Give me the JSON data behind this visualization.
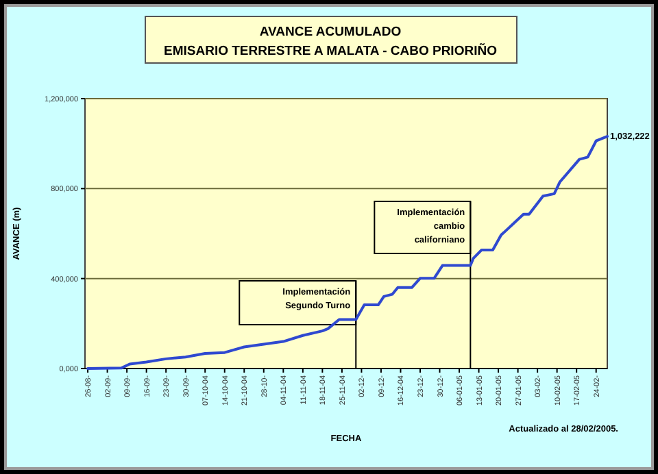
{
  "chart_data": {
    "type": "line",
    "title": "AVANCE ACUMULADO",
    "subtitle": "EMISARIO TERRESTRE A MALATA - CABO PRIORIÑO",
    "xlabel": "FECHA",
    "ylabel": "AVANCE (m)",
    "annotations": [
      "Actualizado al 28/02/2005."
    ],
    "x": [
      "2004-08-26",
      "2004-09-07",
      "2004-09-10",
      "2004-09-16",
      "2004-09-23",
      "2004-09-30",
      "2004-10-07",
      "2004-10-14",
      "2004-10-21",
      "2004-10-28",
      "2004-11-04",
      "2004-11-11",
      "2004-11-18",
      "2004-11-20",
      "2004-11-24",
      "2004-11-30",
      "2004-12-03",
      "2004-12-08",
      "2004-12-10",
      "2004-12-13",
      "2004-12-15",
      "2004-12-20",
      "2004-12-23",
      "2004-12-28",
      "2004-12-31",
      "2005-01-10",
      "2005-01-11",
      "2005-01-14",
      "2005-01-18",
      "2005-01-21",
      "2005-01-22",
      "2005-01-29",
      "2005-01-31",
      "2005-02-05",
      "2005-02-09",
      "2005-02-11",
      "2005-02-18",
      "2005-02-21",
      "2005-02-24",
      "2005-02-28"
    ],
    "series": [
      {
        "color": "#2f49d0",
        "values": [
          0,
          2000,
          20000,
          29000,
          43000,
          51000,
          67000,
          71000,
          96000,
          108000,
          120000,
          147000,
          167000,
          177000,
          218000,
          218000,
          283000,
          283000,
          320000,
          330000,
          360000,
          360000,
          401000,
          401000,
          458000,
          458000,
          489000,
          527000,
          527000,
          594000,
          605000,
          686000,
          686000,
          767000,
          777000,
          829000,
          930000,
          940000,
          1012000,
          1032222
        ],
        "value_labels": [
          null,
          null,
          null,
          null,
          null,
          null,
          null,
          null,
          null,
          null,
          null,
          null,
          null,
          null,
          null,
          null,
          null,
          null,
          null,
          null,
          null,
          null,
          null,
          null,
          null,
          null,
          null,
          null,
          null,
          null,
          null,
          null,
          null,
          null,
          null,
          null,
          null,
          null,
          null,
          "1,032,222"
        ]
      }
    ],
    "xlim": [
      "2004-08-25",
      "2005-02-28"
    ],
    "xticks": [
      {
        "value": "2004-08-26",
        "label": "26-08-"
      },
      {
        "value": "2004-09-02",
        "label": "02-09-"
      },
      {
        "value": "2004-09-09",
        "label": "09-09-"
      },
      {
        "value": "2004-09-16",
        "label": "16-09-"
      },
      {
        "value": "2004-09-23",
        "label": "23-09-"
      },
      {
        "value": "2004-09-30",
        "label": "30-09-"
      },
      {
        "value": "2004-10-07",
        "label": "07-10-04"
      },
      {
        "value": "2004-10-14",
        "label": "14-10-04"
      },
      {
        "value": "2004-10-21",
        "label": "21-10-04"
      },
      {
        "value": "2004-10-28",
        "label": "28-10-"
      },
      {
        "value": "2004-11-04",
        "label": "04-11-04"
      },
      {
        "value": "2004-11-11",
        "label": "11-11-04"
      },
      {
        "value": "2004-11-18",
        "label": "18-11-04"
      },
      {
        "value": "2004-11-25",
        "label": "25-11-04"
      },
      {
        "value": "2004-12-02",
        "label": "02-12-"
      },
      {
        "value": "2004-12-09",
        "label": "09-12-"
      },
      {
        "value": "2004-12-16",
        "label": "16-12-04"
      },
      {
        "value": "2004-12-23",
        "label": "23-12-"
      },
      {
        "value": "2004-12-30",
        "label": "30-12-"
      },
      {
        "value": "2005-01-06",
        "label": "06-01-05"
      },
      {
        "value": "2005-01-13",
        "label": "13-01-05"
      },
      {
        "value": "2005-01-20",
        "label": "20-01-05"
      },
      {
        "value": "2005-01-27",
        "label": "27-01-05"
      },
      {
        "value": "2005-02-03",
        "label": "03-02-"
      },
      {
        "value": "2005-02-10",
        "label": "10-02-05"
      },
      {
        "value": "2005-02-17",
        "label": "17-02-05"
      },
      {
        "value": "2005-02-24",
        "label": "24-02-"
      }
    ],
    "ylim": [
      0,
      1200000
    ],
    "yticks": [
      {
        "value": 0,
        "label": "0,000"
      },
      {
        "value": 400000,
        "label": "400,000"
      },
      {
        "value": 800000,
        "label": "800,000"
      },
      {
        "value": 1200000,
        "label": "1,200,000"
      }
    ],
    "grid": "y",
    "marker": "none",
    "line_style": "solid",
    "ref_lines": [
      {
        "axis": "x",
        "value": "2004-11-30",
        "label": "Implementación Segundo Turno",
        "color": "#000000"
      },
      {
        "axis": "x",
        "value": "2005-01-10",
        "label": "Implementación cambio californiano",
        "color": "#000000"
      }
    ]
  }
}
